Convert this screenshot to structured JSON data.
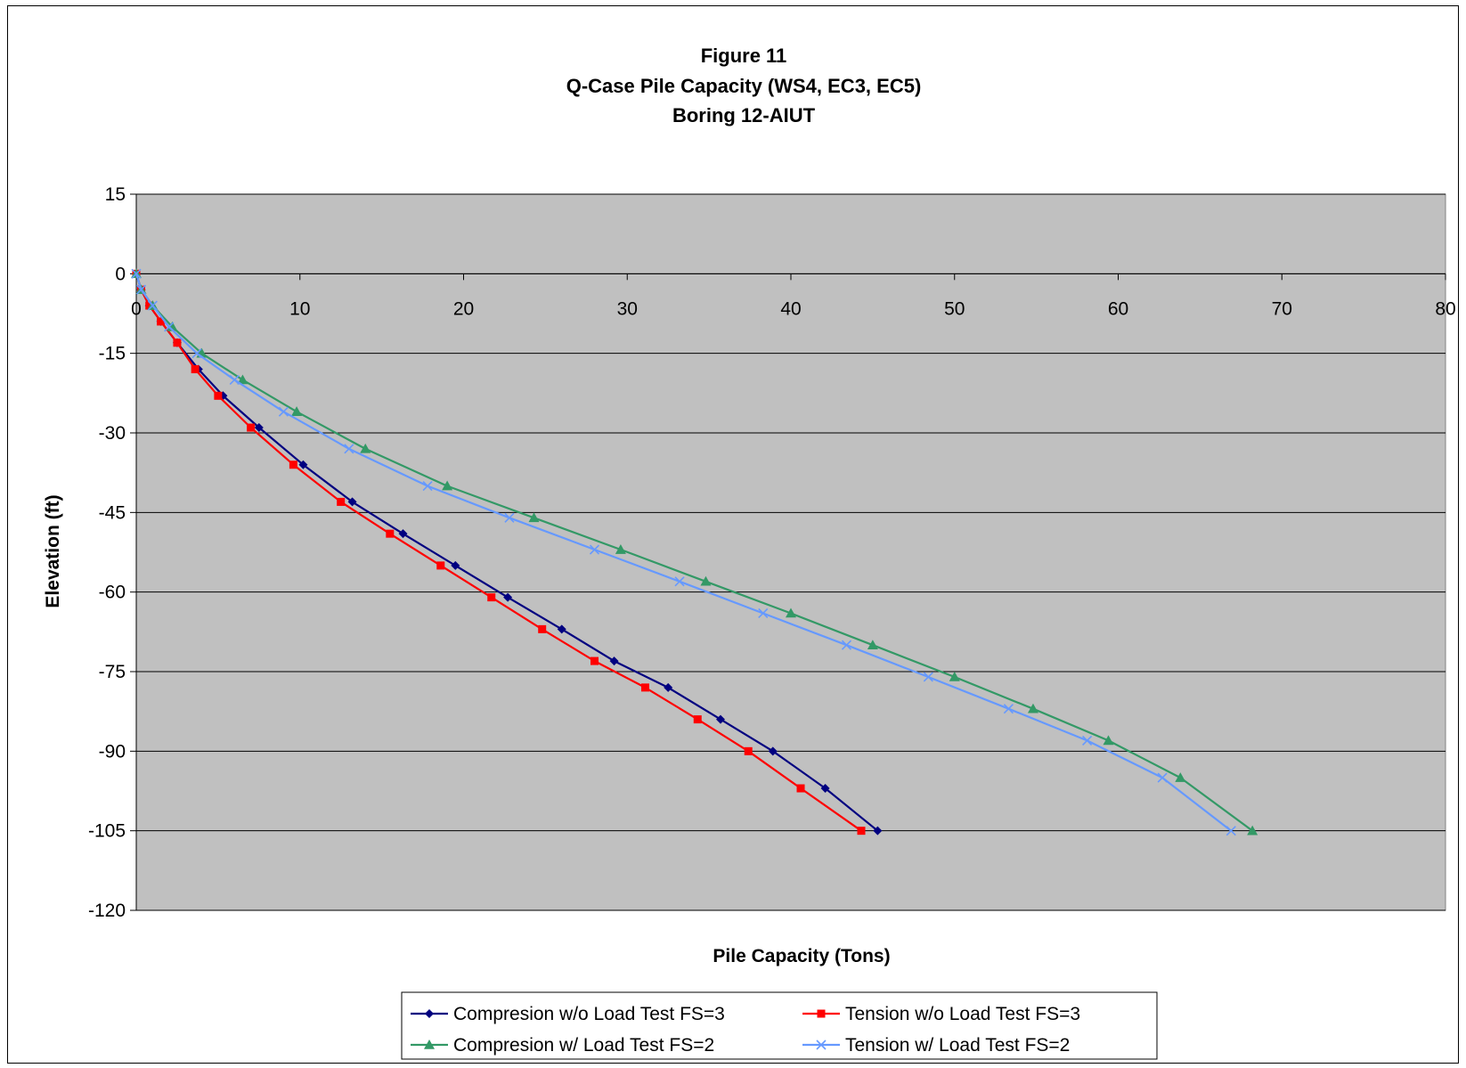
{
  "chart_data": {
    "type": "line",
    "title": "Figure 11",
    "subtitle": [
      "Q-Case Pile Capacity (WS4, EC3, EC5)",
      "Boring 12-AIUT"
    ],
    "xlabel": "Pile Capacity (Tons)",
    "ylabel": "Elevation (ft)",
    "xlim": [
      0,
      80
    ],
    "ylim": [
      -120,
      15
    ],
    "x_ticks": [
      "0",
      "10",
      "20",
      "30",
      "40",
      "50",
      "60",
      "70",
      "80"
    ],
    "y_ticks": [
      "15",
      "0",
      "-15",
      "-30",
      "-45",
      "-60",
      "-75",
      "-90",
      "-105",
      "-120"
    ],
    "x_tick_values": [
      0,
      10,
      20,
      30,
      40,
      50,
      60,
      70,
      80
    ],
    "y_tick_values": [
      15,
      0,
      -15,
      -30,
      -45,
      -60,
      -75,
      -90,
      -105,
      -120
    ],
    "grid": "horizontal",
    "plot_background": "#C0C0C0",
    "legend_position": "bottom",
    "series": [
      {
        "name": "Compresion w/o Load Test FS=3",
        "color": "#000080",
        "marker": "diamond",
        "x": [
          0,
          0.3,
          0.8,
          1.5,
          2.5,
          3.8,
          5.3,
          7.5,
          10.2,
          13.2,
          16.3,
          19.5,
          22.7,
          26.0,
          29.2,
          32.5,
          35.7,
          38.9,
          42.1,
          45.3
        ],
        "y": [
          0,
          -3,
          -6,
          -9,
          -13,
          -18,
          -23,
          -29,
          -36,
          -43,
          -49,
          -55,
          -61,
          -67,
          -73,
          -78,
          -84,
          -90,
          -97,
          -105
        ]
      },
      {
        "name": "Tension w/o Load Test FS=3",
        "color": "#FF0000",
        "marker": "square",
        "x": [
          0,
          0.3,
          0.8,
          1.5,
          2.5,
          3.6,
          5.0,
          7.0,
          9.6,
          12.5,
          15.5,
          18.6,
          21.7,
          24.8,
          28.0,
          31.1,
          34.3,
          37.4,
          40.6,
          44.3
        ],
        "y": [
          0,
          -3,
          -6,
          -9,
          -13,
          -18,
          -23,
          -29,
          -36,
          -43,
          -49,
          -55,
          -61,
          -67,
          -73,
          -78,
          -84,
          -90,
          -97,
          -105
        ]
      },
      {
        "name": "Compresion w/ Load Test FS=2",
        "color": "#339966",
        "marker": "triangle",
        "x": [
          0,
          0.3,
          1.0,
          2.2,
          4.0,
          6.5,
          9.8,
          14.0,
          19.0,
          24.3,
          29.6,
          34.8,
          40.0,
          45.0,
          50.0,
          54.8,
          59.4,
          63.8,
          68.2
        ],
        "y": [
          0,
          -3,
          -6,
          -10,
          -15,
          -20,
          -26,
          -33,
          -40,
          -46,
          -52,
          -58,
          -64,
          -70,
          -76,
          -82,
          -88,
          -95,
          -105
        ]
      },
      {
        "name": "Tension w/ Load Test FS=2",
        "color": "#6699FF",
        "marker": "x",
        "x": [
          0,
          0.3,
          1.0,
          2.0,
          3.7,
          6.0,
          9.0,
          13.0,
          17.8,
          22.8,
          28.0,
          33.2,
          38.3,
          43.4,
          48.4,
          53.3,
          58.1,
          62.7,
          66.9
        ],
        "y": [
          0,
          -3,
          -6,
          -10,
          -15,
          -20,
          -26,
          -33,
          -40,
          -46,
          -52,
          -58,
          -64,
          -70,
          -76,
          -82,
          -88,
          -95,
          -105
        ]
      }
    ]
  }
}
